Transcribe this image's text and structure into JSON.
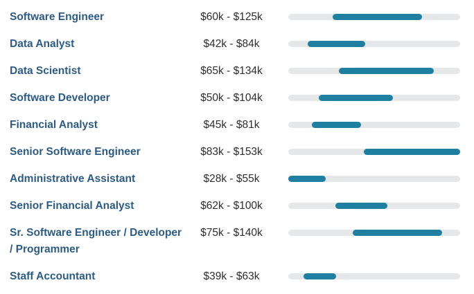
{
  "salary_scale": {
    "min": 28,
    "max": 153,
    "unit": "k"
  },
  "bar_colors": {
    "track": "#e6e7e9",
    "fill": "#1f7fa0"
  },
  "jobs": [
    {
      "title": "Software Engineer",
      "range": "$60k - $125k",
      "low": 60,
      "high": 125
    },
    {
      "title": "Data Analyst",
      "range": "$42k - $84k",
      "low": 42,
      "high": 84
    },
    {
      "title": "Data Scientist",
      "range": "$65k - $134k",
      "low": 65,
      "high": 134
    },
    {
      "title": "Software Developer",
      "range": "$50k - $104k",
      "low": 50,
      "high": 104
    },
    {
      "title": "Financial Analyst",
      "range": "$45k - $81k",
      "low": 45,
      "high": 81
    },
    {
      "title": "Senior Software Engineer",
      "range": "$83k - $153k",
      "low": 83,
      "high": 153
    },
    {
      "title": "Administrative Assistant",
      "range": "$28k - $55k",
      "low": 28,
      "high": 55
    },
    {
      "title": "Senior Financial Analyst",
      "range": "$62k - $100k",
      "low": 62,
      "high": 100
    },
    {
      "title": "Sr. Software Engineer / Developer / Programmer",
      "range": "$75k - $140k",
      "low": 75,
      "high": 140
    },
    {
      "title": "Staff Accountant",
      "range": "$39k - $63k",
      "low": 39,
      "high": 63
    }
  ]
}
